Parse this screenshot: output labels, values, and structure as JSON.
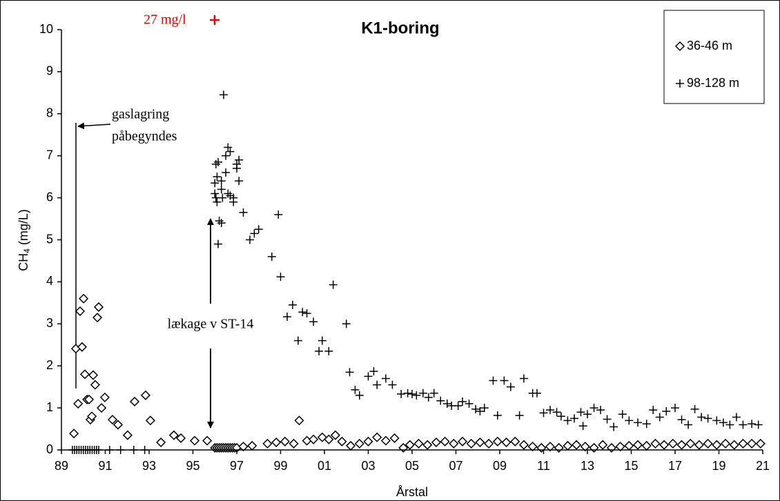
{
  "chart_data": {
    "type": "scatter",
    "title": "K1-boring",
    "y_label": {
      "main": "CH",
      "sub": "4",
      "unit": "(mg/L)"
    },
    "x_label": "Årstal",
    "annotations": {
      "off_scale": "27 mg/l",
      "storage_start": [
        "gaslagring",
        "påbegyndes"
      ],
      "leak": "lækage v ST-14"
    },
    "legend": "upper right",
    "grid": false,
    "xlim": [
      1989,
      2021
    ],
    "ylim": [
      0,
      10
    ],
    "xticks": [
      {
        "value": 1989,
        "label": "89"
      },
      {
        "value": 1991,
        "label": "91"
      },
      {
        "value": 1993,
        "label": "93"
      },
      {
        "value": 1995,
        "label": "95"
      },
      {
        "value": 1997,
        "label": "97"
      },
      {
        "value": 1999,
        "label": "99"
      },
      {
        "value": 2001,
        "label": "01"
      },
      {
        "value": 2003,
        "label": "03"
      },
      {
        "value": 2005,
        "label": "05"
      },
      {
        "value": 2007,
        "label": "07"
      },
      {
        "value": 2009,
        "label": "09"
      },
      {
        "value": 2011,
        "label": "11"
      },
      {
        "value": 2013,
        "label": "13"
      },
      {
        "value": 2015,
        "label": "15"
      },
      {
        "value": 2017,
        "label": "17"
      },
      {
        "value": 2019,
        "label": "19"
      },
      {
        "value": 2021,
        "label": "21"
      }
    ],
    "yticks": [
      0,
      1,
      2,
      3,
      4,
      5,
      6,
      7,
      8,
      9,
      10
    ],
    "series": [
      {
        "name": "36-46 m",
        "marker": "diamond",
        "color": "#000000",
        "x": [
          1989.57,
          1989.66,
          1989.76,
          1989.85,
          1989.94,
          1990.01,
          1990.07,
          1990.17,
          1990.26,
          1990.32,
          1990.39,
          1990.45,
          1990.54,
          1990.64,
          1990.7,
          1990.83,
          1990.98,
          1991.33,
          1991.58,
          1992.02,
          1992.34,
          1992.84,
          1993.06,
          1993.54,
          1994.13,
          1994.45,
          1995.08,
          1995.65,
          1996.0,
          1996.1,
          1996.2,
          1996.3,
          1996.4,
          1996.5,
          1996.6,
          1996.7,
          1996.8,
          1996.9,
          1997.0,
          1997.3,
          1997.7,
          1998.4,
          1998.8,
          1999.2,
          1999.6,
          1999.85,
          2000.2,
          2000.5,
          2000.9,
          2001.2,
          2001.5,
          2001.8,
          2002.2,
          2002.6,
          2003.0,
          2003.4,
          2003.8,
          2004.2,
          2004.6,
          2004.9,
          2005.3,
          2005.7,
          2006.1,
          2006.5,
          2006.9,
          2007.3,
          2007.7,
          2008.1,
          2008.5,
          2008.9,
          2009.3,
          2009.7,
          2010.1,
          2010.5,
          2010.9,
          2011.3,
          2011.7,
          2012.1,
          2012.5,
          2012.9,
          2013.3,
          2013.7,
          2014.1,
          2014.5,
          2014.9,
          2015.3,
          2015.7,
          2016.1,
          2016.5,
          2016.9,
          2017.3,
          2017.7,
          2018.1,
          2018.5,
          2018.9,
          2019.3,
          2019.7,
          2020.1,
          2020.5,
          2020.9
        ],
        "values": [
          0.39,
          2.41,
          1.1,
          3.3,
          2.45,
          3.6,
          1.8,
          1.2,
          1.2,
          0.72,
          0.8,
          1.78,
          1.55,
          3.15,
          3.4,
          1.0,
          1.25,
          0.72,
          0.6,
          0.35,
          1.15,
          1.3,
          0.7,
          0.18,
          0.35,
          0.28,
          0.22,
          0.22,
          0.05,
          0.05,
          0.05,
          0.05,
          0.05,
          0.05,
          0.05,
          0.05,
          0.05,
          0.05,
          0.05,
          0.08,
          0.1,
          0.15,
          0.18,
          0.2,
          0.15,
          0.7,
          0.22,
          0.25,
          0.3,
          0.25,
          0.35,
          0.2,
          0.1,
          0.15,
          0.2,
          0.3,
          0.22,
          0.28,
          0.05,
          0.12,
          0.15,
          0.12,
          0.18,
          0.2,
          0.15,
          0.2,
          0.15,
          0.18,
          0.15,
          0.2,
          0.18,
          0.2,
          0.12,
          0.08,
          0.05,
          0.08,
          0.05,
          0.1,
          0.12,
          0.08,
          0.05,
          0.12,
          0.05,
          0.08,
          0.1,
          0.12,
          0.1,
          0.15,
          0.12,
          0.15,
          0.12,
          0.15,
          0.12,
          0.15,
          0.12,
          0.15,
          0.12,
          0.15,
          0.15,
          0.15
        ]
      },
      {
        "name": "98-128 m",
        "marker": "plus",
        "color": "#000000",
        "x": [
          1989.5,
          1989.6,
          1989.7,
          1989.8,
          1989.9,
          1990.0,
          1990.1,
          1990.2,
          1990.3,
          1990.4,
          1990.5,
          1990.6,
          1990.7,
          1991.2,
          1991.7,
          1992.3,
          1992.8,
          1996.0,
          1996.0,
          1996.05,
          1996.05,
          1996.1,
          1996.1,
          1996.15,
          1996.15,
          1996.2,
          1996.3,
          1996.3,
          1996.3,
          1996.35,
          1996.4,
          1996.5,
          1996.5,
          1996.6,
          1996.6,
          1996.7,
          1996.7,
          1996.85,
          1996.85,
          1997.0,
          1997.0,
          1997.1,
          1997.1,
          1997.3,
          1997.6,
          1997.8,
          1998.0,
          1998.6,
          1998.9,
          1999.0,
          1999.3,
          1999.55,
          1999.8,
          2000.0,
          2000.2,
          2000.5,
          2000.75,
          2000.9,
          2001.2,
          2001.4,
          2002.0,
          2002.15,
          2002.4,
          2002.6,
          2003.0,
          2003.25,
          2003.4,
          2003.8,
          2004.1,
          2004.5,
          2004.8,
          2005.0,
          2005.2,
          2005.5,
          2005.75,
          2006.0,
          2006.3,
          2006.6,
          2006.8,
          2007.1,
          2007.3,
          2007.6,
          2007.9,
          2008.1,
          2008.3,
          2008.7,
          2008.9,
          2009.2,
          2009.5,
          2009.9,
          2010.1,
          2010.5,
          2010.7,
          2011.0,
          2011.3,
          2011.6,
          2011.8,
          2012.1,
          2012.4,
          2012.7,
          2012.8,
          2013.0,
          2013.3,
          2013.6,
          2013.9,
          2014.2,
          2014.6,
          2014.9,
          2015.3,
          2015.7,
          2016.0,
          2016.3,
          2016.6,
          2017.0,
          2017.3,
          2017.6,
          2017.9,
          2018.2,
          2018.5,
          2018.9,
          2019.2,
          2019.5,
          2019.8,
          2020.1,
          2020.5,
          2020.8
        ],
        "values": [
          0,
          0,
          0,
          0,
          0,
          0,
          0,
          0,
          0,
          0,
          0,
          0,
          0,
          0,
          0,
          0,
          0,
          6.35,
          6.1,
          6.8,
          6.0,
          6.5,
          5.9,
          6.85,
          4.9,
          5.45,
          5.4,
          6.4,
          6.2,
          6.0,
          8.45,
          7.0,
          6.6,
          7.2,
          6.1,
          7.1,
          6.05,
          6.0,
          5.9,
          6.7,
          6.8,
          6.9,
          6.4,
          5.65,
          5.0,
          5.15,
          5.25,
          4.6,
          5.6,
          4.12,
          3.17,
          3.45,
          2.6,
          3.28,
          3.25,
          3.05,
          2.35,
          2.6,
          2.35,
          3.93,
          3.0,
          1.85,
          1.43,
          1.3,
          1.75,
          1.87,
          1.55,
          1.7,
          1.55,
          1.33,
          1.35,
          1.33,
          1.3,
          1.35,
          1.25,
          1.35,
          1.17,
          1.1,
          1.05,
          1.05,
          1.15,
          1.1,
          0.97,
          0.92,
          1.0,
          1.65,
          0.82,
          1.65,
          1.5,
          0.82,
          1.7,
          1.35,
          1.35,
          0.88,
          0.95,
          0.9,
          0.8,
          0.7,
          0.75,
          0.9,
          0.57,
          0.85,
          1.0,
          0.95,
          0.73,
          0.55,
          0.85,
          0.7,
          0.65,
          0.62,
          0.95,
          0.78,
          0.92,
          1.0,
          0.72,
          0.6,
          0.97,
          0.78,
          0.75,
          0.7,
          0.65,
          0.6,
          0.78,
          0.6,
          0.62,
          0.6
        ]
      }
    ]
  }
}
